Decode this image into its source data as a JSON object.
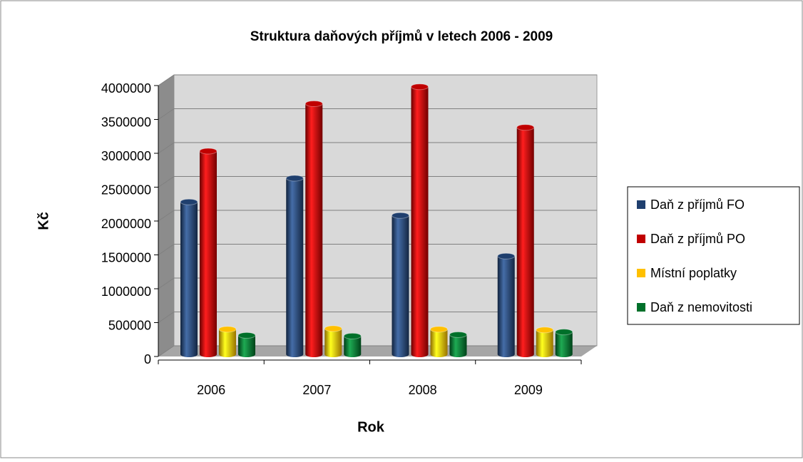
{
  "chart_data": {
    "type": "bar",
    "title": "Struktura daňových příjmů v letech 2006 - 2009",
    "x_label": "Rok",
    "y_label": "Kč",
    "categories": [
      "2006",
      "2007",
      "2008",
      "2009"
    ],
    "series": [
      {
        "name": "Daň z příjmů FO",
        "color": "#1f3f6e",
        "values": [
          2250000,
          2600000,
          2050000,
          1450000
        ]
      },
      {
        "name": "Daň z příjmů PO",
        "color": "#c00000",
        "values": [
          3000000,
          3700000,
          3950000,
          3350000
        ]
      },
      {
        "name": "Místní poplatky",
        "color": "#ffc000",
        "values": [
          370000,
          380000,
          370000,
          360000
        ]
      },
      {
        "name": "Daň z nemovitosti",
        "color": "#00702a",
        "values": [
          280000,
          270000,
          290000,
          330000
        ]
      }
    ],
    "ylim": [
      0,
      4000000
    ],
    "yticks": [
      0,
      500000,
      1000000,
      1500000,
      2000000,
      2500000,
      3000000,
      3500000,
      4000000
    ],
    "grid": true,
    "legend": "right"
  }
}
